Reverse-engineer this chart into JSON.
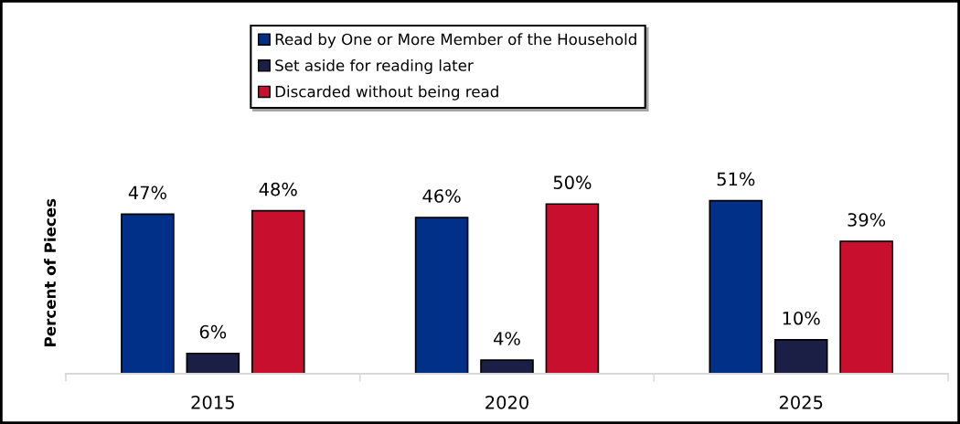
{
  "chart_data": {
    "type": "bar",
    "ylabel": "Percent of Pieces",
    "categories": [
      "2015",
      "2020",
      "2025"
    ],
    "series": [
      {
        "name": "Read by One or More Member of the Household",
        "color": "#003087",
        "values": [
          47,
          46,
          51
        ],
        "value_labels": [
          "47%",
          "46%",
          "51%"
        ]
      },
      {
        "name": "Set aside for reading later",
        "color": "#1c1f45",
        "values": [
          6,
          4,
          10
        ],
        "value_labels": [
          "6%",
          "4%",
          "10%"
        ]
      },
      {
        "name": "Discarded without being read",
        "color": "#c8102e",
        "values": [
          48,
          50,
          39
        ],
        "value_labels": [
          "48%",
          "50%",
          "39%"
        ]
      }
    ],
    "legend": "top"
  }
}
